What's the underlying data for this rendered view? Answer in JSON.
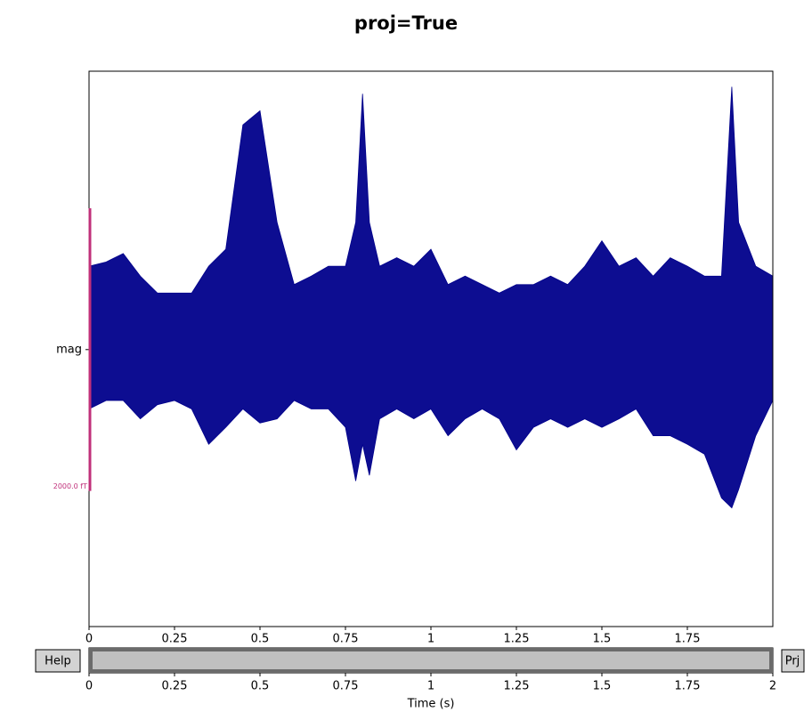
{
  "chart_data": [
    {
      "type": "envelope",
      "title": "proj=True",
      "x": [
        0,
        0.05,
        0.1,
        0.15,
        0.2,
        0.25,
        0.3,
        0.35,
        0.4,
        0.45,
        0.5,
        0.55,
        0.6,
        0.65,
        0.7,
        0.75,
        0.78,
        0.8,
        0.82,
        0.85,
        0.9,
        0.95,
        1.0,
        1.05,
        1.1,
        1.15,
        1.2,
        1.25,
        1.3,
        1.35,
        1.4,
        1.45,
        1.5,
        1.55,
        1.6,
        1.65,
        1.7,
        1.75,
        1.8,
        1.85,
        1.88,
        1.9,
        1.95,
        2.0
      ],
      "series": [
        {
          "color": "#00008b",
          "values": [
            590,
            620,
            680,
            520,
            400,
            400,
            400,
            590,
            710,
            1590,
            1690,
            900,
            460,
            520,
            590,
            590,
            900,
            1810,
            900,
            590,
            650,
            590,
            710,
            460,
            520,
            460,
            400,
            460,
            460,
            520,
            460,
            590,
            770,
            590,
            650,
            520,
            650,
            590,
            520,
            520,
            1860,
            900,
            590,
            520
          ]
        },
        {
          "color": "#00008b",
          "values": [
            -420,
            -360,
            -360,
            -490,
            -390,
            -360,
            -420,
            -670,
            -550,
            -420,
            -520,
            -490,
            -360,
            -420,
            -420,
            -550,
            -930,
            -670,
            -890,
            -490,
            -420,
            -490,
            -420,
            -610,
            -490,
            -420,
            -490,
            -710,
            -550,
            -490,
            -550,
            -490,
            -550,
            -490,
            -420,
            -610,
            -610,
            -670,
            -740,
            -1050,
            -1120,
            -990,
            -610,
            -360
          ]
        }
      ],
      "xlim": [
        0,
        2
      ],
      "xticks": [
        0,
        0.25,
        0.5,
        0.75,
        1,
        1.25,
        1.5,
        1.75
      ],
      "ylim": [
        -1960,
        1970
      ],
      "yticks": [
        {
          "value": 0,
          "label": "mag"
        }
      ],
      "scale_bar": {
        "value": 2000,
        "label": "2000.0 fT",
        "color": "#c0307a"
      }
    },
    {
      "type": "scrollbar",
      "xlabel": "Time (s)",
      "xlim": [
        0,
        2
      ],
      "xticks": [
        0,
        0.25,
        0.5,
        0.75,
        1,
        1.25,
        1.5,
        1.75,
        2
      ],
      "view": [
        0,
        2
      ]
    }
  ],
  "buttons": [
    "Help",
    "Prj"
  ]
}
